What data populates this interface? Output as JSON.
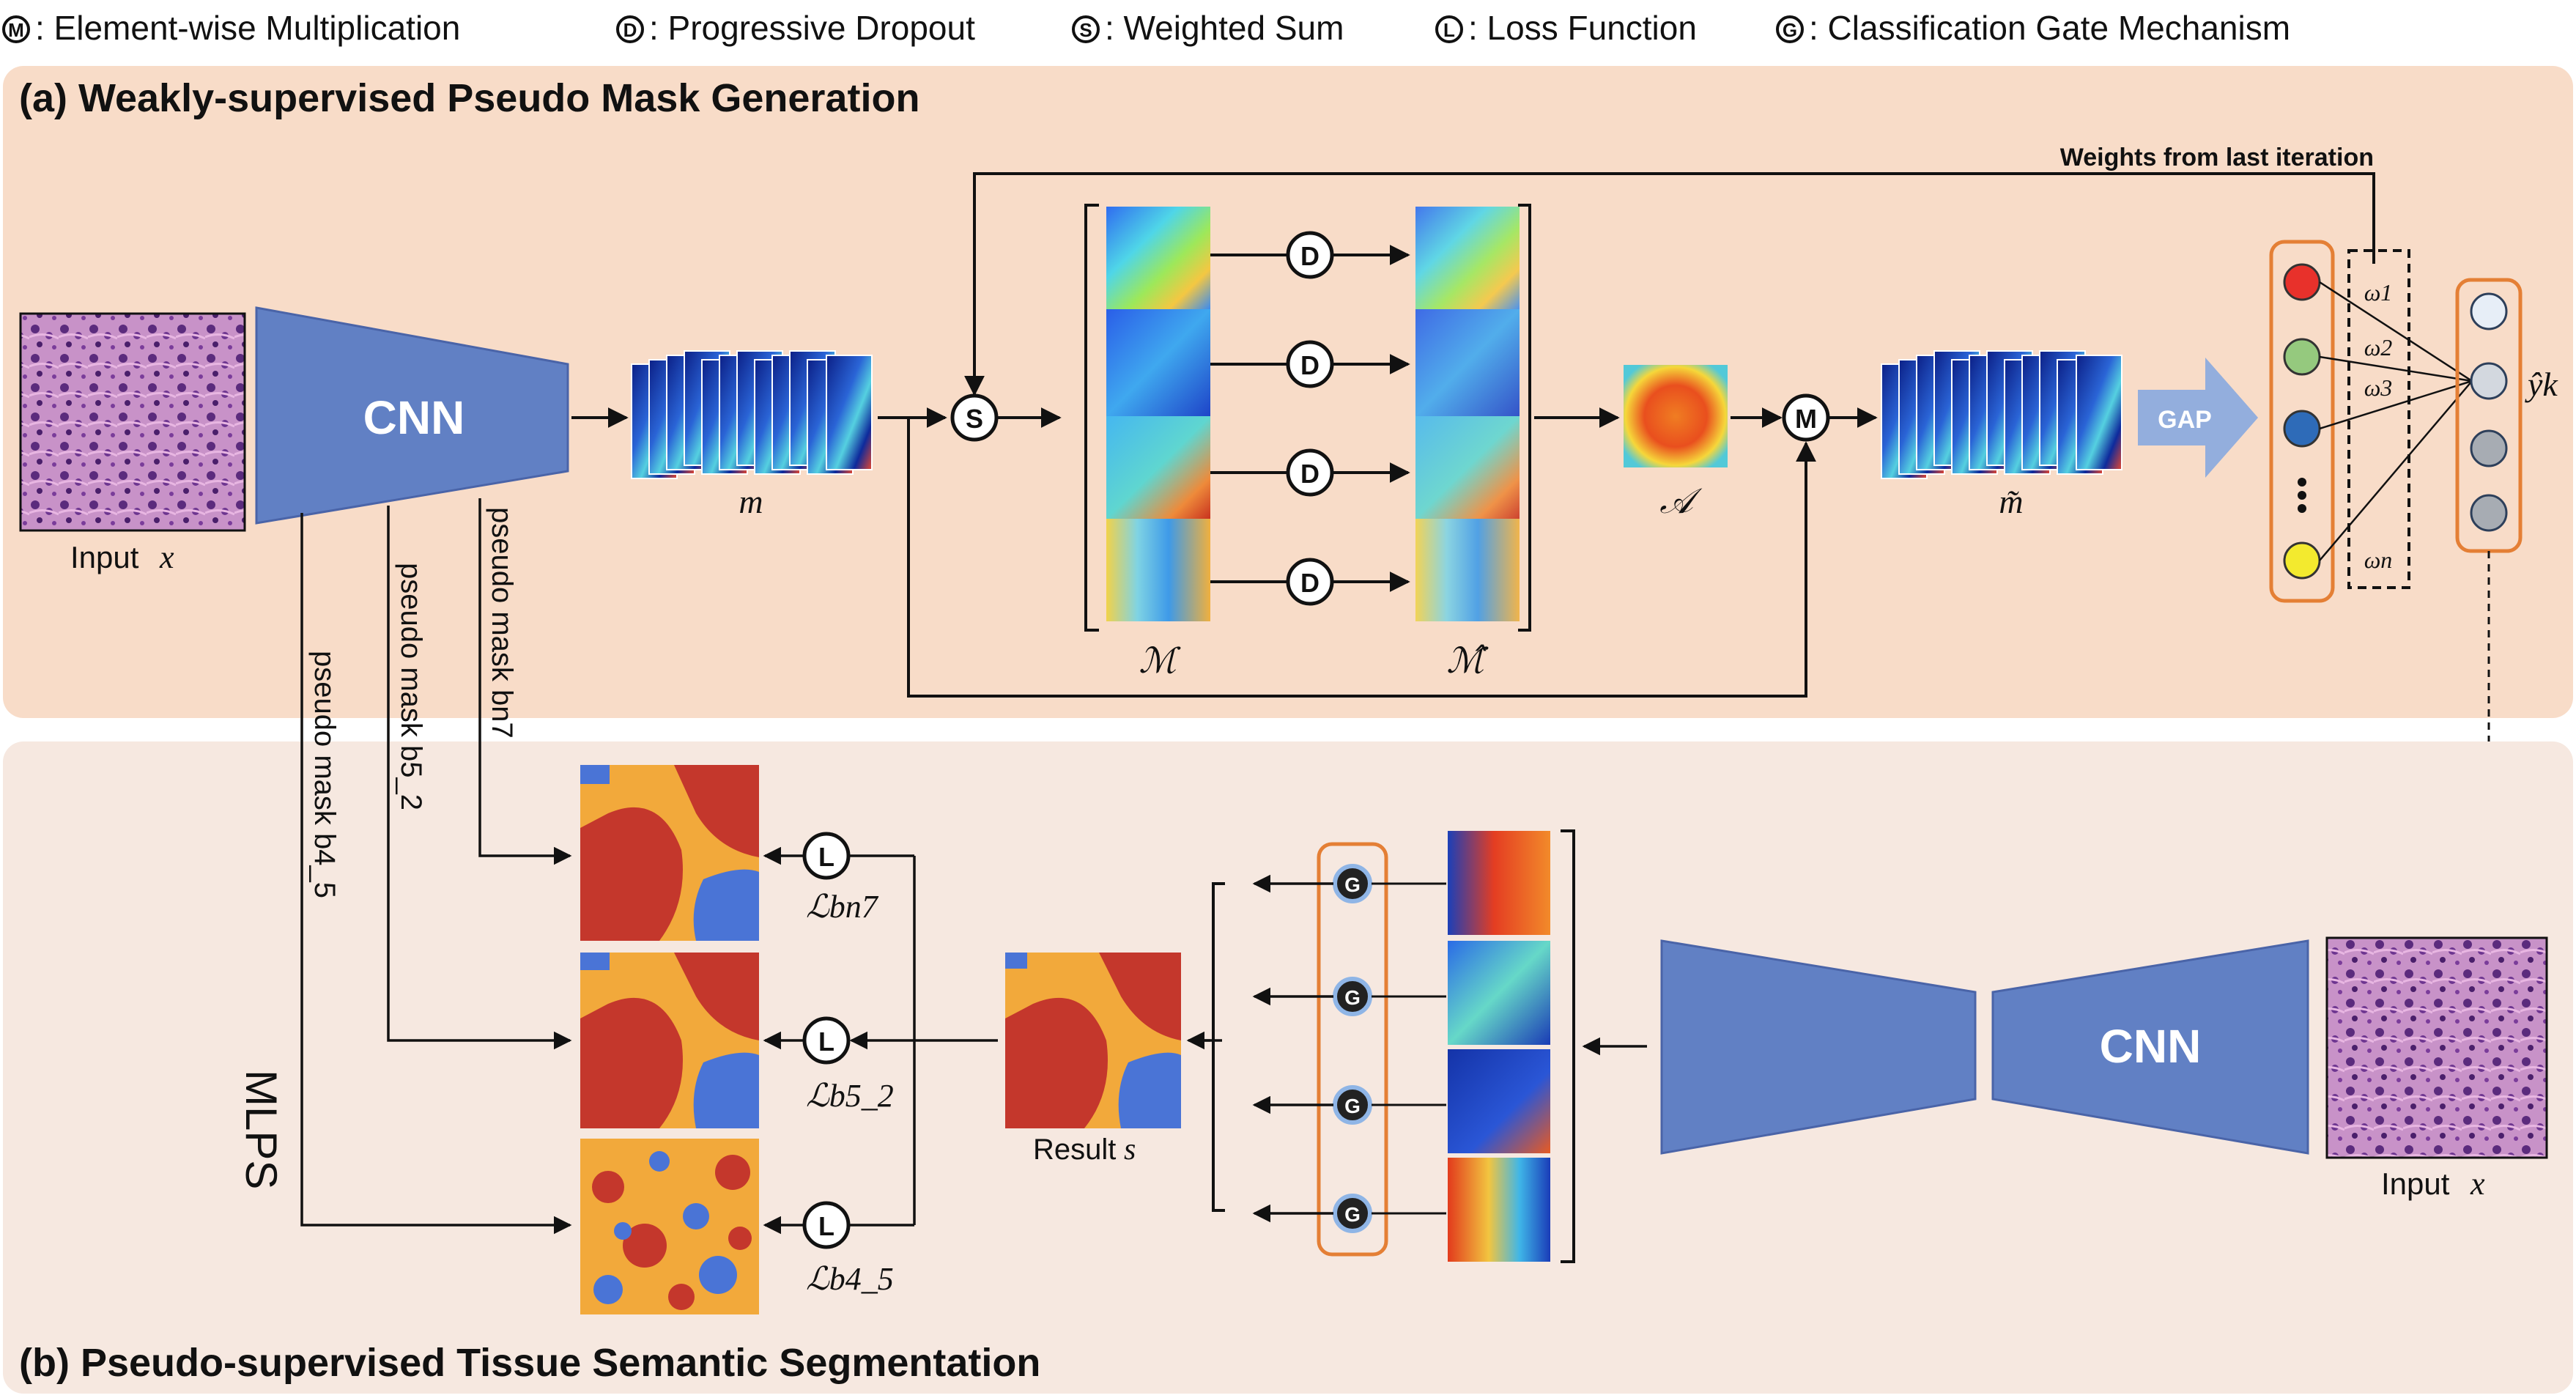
{
  "legend": [
    {
      "symbol": "M",
      "label": ": Element-wise Multiplication"
    },
    {
      "symbol": "D",
      "label": ": Progressive Dropout"
    },
    {
      "symbol": "S",
      "label": ": Weighted Sum"
    },
    {
      "symbol": "L",
      "label": ": Loss Function"
    },
    {
      "symbol": "G",
      "label": ": Classification Gate Mechanism"
    }
  ],
  "panel_a": {
    "title": "(a) Weakly-supervised Pseudo Mask Generation",
    "input_label": "Input",
    "input_var": "x",
    "cnn_label": "CNN",
    "m_label": "m",
    "M_label": "ℳ",
    "M_hat_label": "ℳ̂",
    "A_label": "𝒜",
    "m_tilde_label": "m̃",
    "gap_label": "GAP",
    "weights_label": "Weights from last iteration",
    "omegas": [
      "ω1",
      "ω2",
      "ω3",
      "ωn"
    ],
    "y_hat_label": "ŷk",
    "node_colors": [
      "#e8312b",
      "#95c97e",
      "#2e6bb8",
      "#f3ea2e"
    ]
  },
  "pseudo_masks": [
    "pseudo mask bn7",
    "pseudo mask b5_2",
    "pseudo mask b4_5"
  ],
  "panel_b": {
    "title": "(b) Pseudo-supervised Tissue Semantic Segmentation",
    "mlps_label": "MLPS",
    "losses": [
      "ℒbn7",
      "ℒb5_2",
      "ℒb4_5"
    ],
    "result_label": "Result",
    "result_var": "s",
    "cnn_label": "CNN",
    "input_label": "Input",
    "input_var": "x"
  },
  "colors": {
    "panel_a_bg": "#f8dcc8",
    "panel_b_bg": "#f6e8e0",
    "cnn": "#6180c4",
    "gate_border": "#e47f35",
    "mask_red": "#c4372c",
    "mask_orange": "#f2a93b",
    "mask_blue": "#4a74d6",
    "gap_arrow": "#93aedd"
  }
}
